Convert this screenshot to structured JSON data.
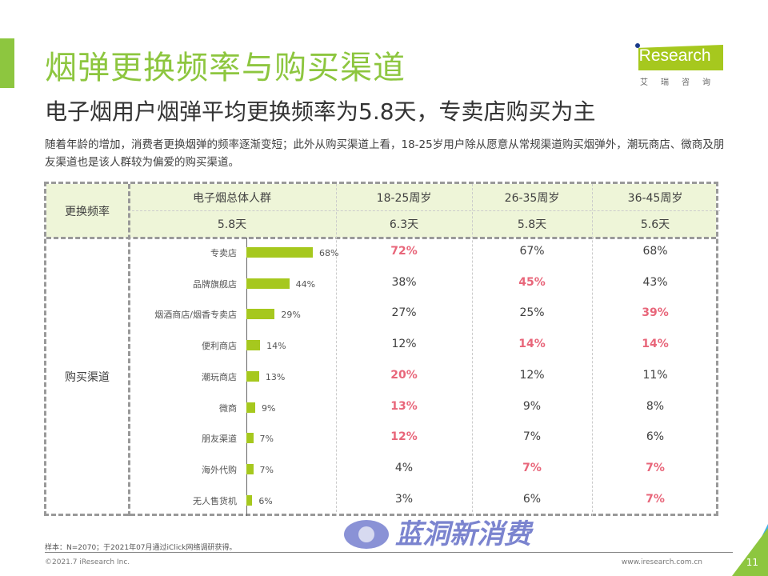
{
  "header": {
    "title": "烟弹更换频率与购买渠道",
    "subtitle": "电子烟用户烟弹平均更换频率为5.8天，专卖店购买为主",
    "description": "随着年龄的增加，消费者更换烟弹的频率逐渐变短；此外从购买渠道上看，18-25岁用户除从愿意从常规渠道购买烟弹外，潮玩商店、微商及朋友渠道也是该人群较为偏爱的购买渠道。"
  },
  "logo": {
    "text": "iResearch",
    "cn": "艾瑞咨询",
    "color": "#a6c81e"
  },
  "table": {
    "freq_label": "更换频率",
    "channel_label": "购买渠道",
    "columns": [
      "电子烟总体人群",
      "18-25周岁",
      "26-35周岁",
      "36-45周岁"
    ],
    "freq": [
      "5.8天",
      "6.3天",
      "5.8天",
      "5.6天"
    ],
    "rows": [
      {
        "name": "专卖店",
        "overall": 68,
        "g1": "72%",
        "g2": "67%",
        "g3": "68%",
        "hl": [
          true,
          false,
          false
        ]
      },
      {
        "name": "品牌旗舰店",
        "overall": 44,
        "g1": "38%",
        "g2": "45%",
        "g3": "43%",
        "hl": [
          false,
          true,
          false
        ]
      },
      {
        "name": "烟酒商店/烟香专卖店",
        "overall": 29,
        "g1": "27%",
        "g2": "25%",
        "g3": "39%",
        "hl": [
          false,
          false,
          true
        ]
      },
      {
        "name": "便利商店",
        "overall": 14,
        "g1": "12%",
        "g2": "14%",
        "g3": "14%",
        "hl": [
          false,
          true,
          true
        ]
      },
      {
        "name": "潮玩商店",
        "overall": 13,
        "g1": "20%",
        "g2": "12%",
        "g3": "11%",
        "hl": [
          true,
          false,
          false
        ]
      },
      {
        "name": "微商",
        "overall": 9,
        "g1": "13%",
        "g2": "9%",
        "g3": "8%",
        "hl": [
          true,
          false,
          false
        ]
      },
      {
        "name": "朋友渠道",
        "overall": 7,
        "g1": "12%",
        "g2": "7%",
        "g3": "6%",
        "hl": [
          true,
          false,
          false
        ]
      },
      {
        "name": "海外代购",
        "overall": 7,
        "g1": "4%",
        "g2": "7%",
        "g3": "7%",
        "hl": [
          false,
          true,
          true
        ]
      },
      {
        "name": "无人售货机",
        "overall": 6,
        "g1": "3%",
        "g2": "6%",
        "g3": "7%",
        "hl": [
          false,
          false,
          true
        ]
      }
    ],
    "bar_color": "#a6c81e",
    "highlight_color": "#e8667a"
  },
  "watermark": {
    "text": "蓝洞新消费"
  },
  "footer": {
    "note": "样本：N=2070；于2021年07月通过iClick网络调研获得。",
    "copyright": "©2021.7 iResearch Inc.",
    "url": "www.iresearch.com.cn",
    "page": "11"
  }
}
